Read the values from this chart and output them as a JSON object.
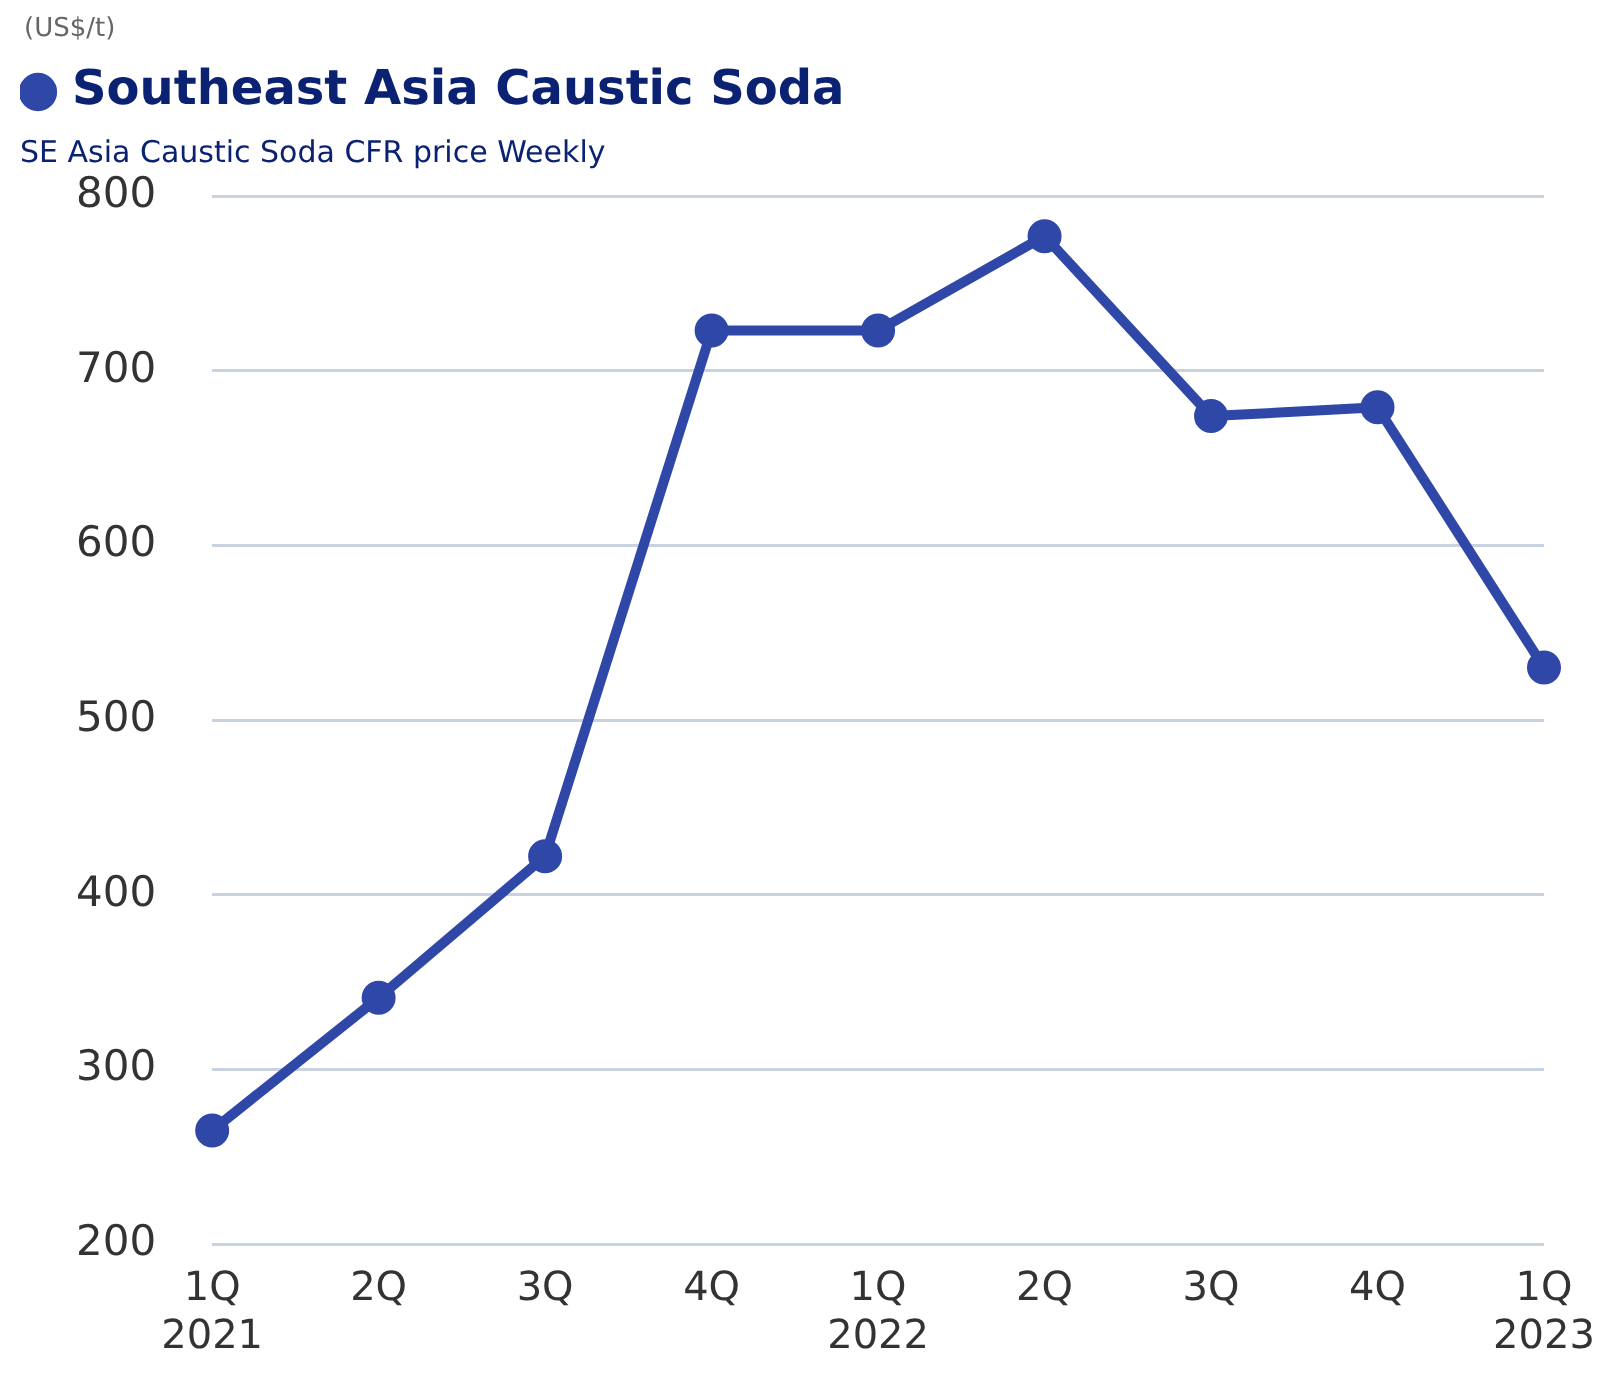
{
  "chart_data": {
    "type": "line",
    "subtitle": "SE Asia Caustic Soda CFR price Weekly",
    "ylabel": "(US$/t)",
    "categories": [
      "1Q\n2021",
      "2Q",
      "3Q",
      "4Q",
      "1Q\n2022",
      "2Q",
      "3Q",
      "4Q",
      "1Q\n2023"
    ],
    "series": [
      {
        "name": "Southeast Asia Caustic Soda",
        "color": "#2f48a8",
        "values": [
          265,
          341,
          422,
          723,
          723,
          777,
          674,
          679,
          530
        ]
      }
    ],
    "ylim": [
      200,
      800
    ],
    "yticks": [
      200,
      300,
      400,
      500,
      600,
      700,
      800
    ],
    "grid": "y",
    "legend": "top left",
    "marker": "circle",
    "line_style": "solid"
  }
}
